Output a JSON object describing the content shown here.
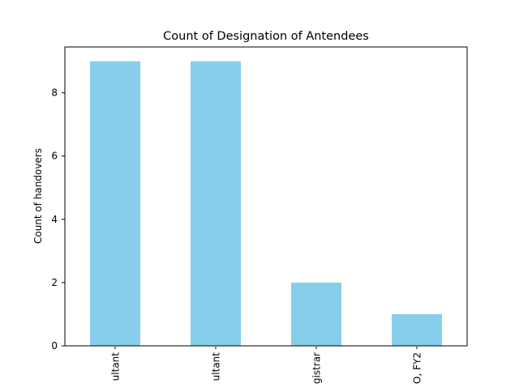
{
  "chart_data": {
    "type": "bar",
    "title": "Count of Designation of Antendees",
    "xlabel": "",
    "ylabel": "Count of handovers",
    "tick_labels_visible": [
      "ultant",
      "ultant",
      "gistrar",
      "O, FY2"
    ],
    "values": [
      9,
      9,
      2,
      1
    ],
    "ylim": [
      0,
      9.45
    ],
    "yticks": [
      0,
      2,
      4,
      6,
      8
    ],
    "bar_color": "#87ceeb",
    "grid": false,
    "legend": "none"
  }
}
